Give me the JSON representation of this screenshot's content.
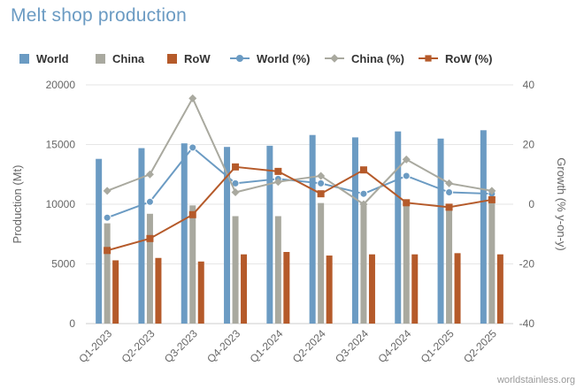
{
  "title": "Melt shop production",
  "credits": "worldstainless.org",
  "legend": [
    {
      "name": "World",
      "kind": "bar",
      "color": "#6b9bc3"
    },
    {
      "name": "China",
      "kind": "bar",
      "color": "#a9a99f"
    },
    {
      "name": "RoW",
      "kind": "bar",
      "color": "#b55a2a"
    },
    {
      "name": "World (%)",
      "kind": "line",
      "marker": "circle",
      "color": "#6b9bc3"
    },
    {
      "name": "China (%)",
      "kind": "line",
      "marker": "diamond",
      "color": "#a9a99f"
    },
    {
      "name": "RoW (%)",
      "kind": "line",
      "marker": "square",
      "color": "#b55a2a"
    }
  ],
  "chart_data": {
    "type": "bar",
    "title": "Melt shop production",
    "categories": [
      "Q1-2023",
      "Q2-2023",
      "Q3-2023",
      "Q4-2023",
      "Q1-2024",
      "Q2-2024",
      "Q3-2024",
      "Q4-2024",
      "Q1-2025",
      "Q2-2025"
    ],
    "ylabel": "Production (Mt)",
    "ylim": [
      0,
      20000
    ],
    "yticks": [
      "0",
      "5000",
      "10000",
      "15000",
      "20000"
    ],
    "y2label": "Growth (% y-on-y)",
    "y2lim": [
      -40,
      40
    ],
    "y2ticks": [
      "-40",
      "-20",
      "0",
      "20",
      "40"
    ],
    "grid": true,
    "bar_series": [
      {
        "name": "World",
        "color": "#6b9bc3",
        "values": [
          13800,
          14700,
          15100,
          14800,
          14900,
          15800,
          15600,
          16100,
          15500,
          16200
        ]
      },
      {
        "name": "China",
        "color": "#a9a99f",
        "values": [
          8400,
          9200,
          9900,
          9000,
          9000,
          10100,
          9900,
          10300,
          9700,
          10400
        ]
      },
      {
        "name": "RoW",
        "color": "#b55a2a",
        "values": [
          5300,
          5500,
          5200,
          5800,
          6000,
          5700,
          5800,
          5800,
          5900,
          5800
        ]
      }
    ],
    "line_series": [
      {
        "name": "World (%)",
        "color": "#6b9bc3",
        "marker": "circle",
        "values": [
          -4.5,
          0.8,
          19,
          7,
          8.5,
          7,
          3.5,
          9.5,
          4,
          3.5
        ]
      },
      {
        "name": "China (%)",
        "color": "#a9a99f",
        "marker": "diamond",
        "values": [
          4.5,
          10,
          35.5,
          4,
          7.5,
          9.5,
          0,
          15,
          7,
          4.5
        ]
      },
      {
        "name": "RoW (%)",
        "color": "#b55a2a",
        "marker": "square",
        "values": [
          -15.5,
          -11.5,
          -3.5,
          12.5,
          11,
          3.5,
          11.5,
          0.5,
          -1,
          1.5
        ]
      }
    ]
  }
}
